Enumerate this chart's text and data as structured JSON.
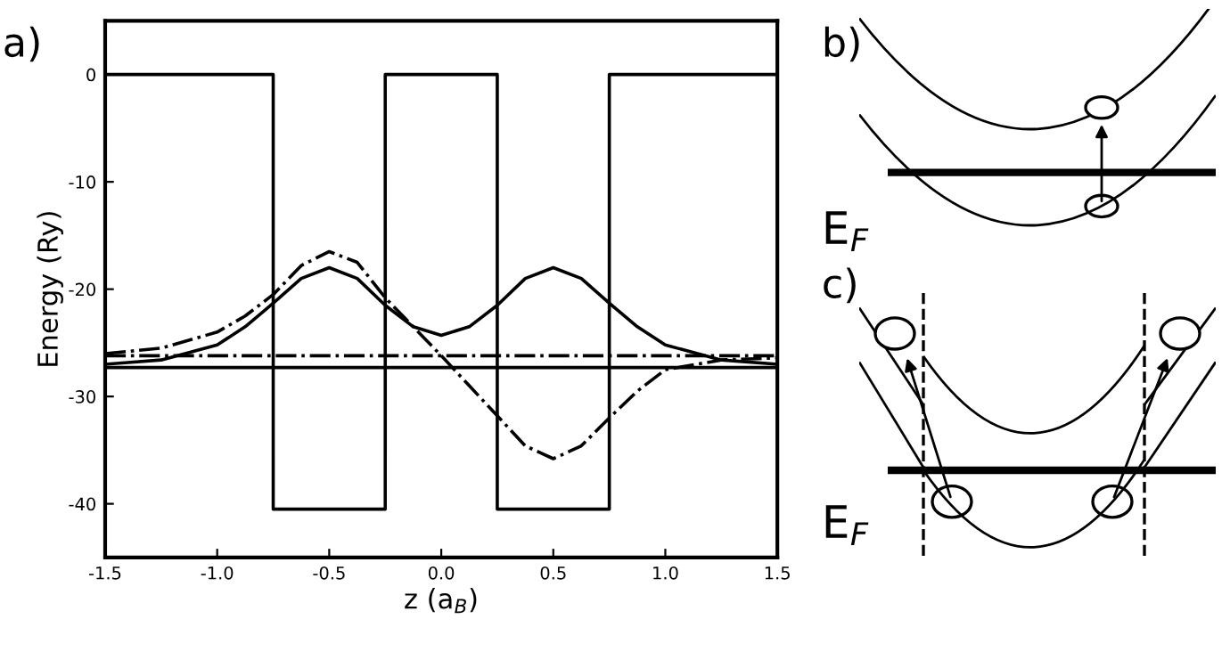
{
  "chart_data": {
    "type": "line",
    "xlabel": "z (a$_{B}$)",
    "ylabel": "Energy (Ry)",
    "xlim": [
      -1.5,
      1.5
    ],
    "ylim": [
      -45,
      5
    ],
    "xticks": [
      {
        "value": -1.5,
        "label": "-1.5"
      },
      {
        "value": -1.0,
        "label": "-1.0"
      },
      {
        "value": -0.5,
        "label": "-0.5"
      },
      {
        "value": 0.0,
        "label": "0.0"
      },
      {
        "value": 0.5,
        "label": "0.5"
      },
      {
        "value": 1.0,
        "label": "1.0"
      },
      {
        "value": 1.5,
        "label": "1.5"
      }
    ],
    "yticks": [
      -40,
      -30,
      -20,
      -10,
      0
    ],
    "grid": false,
    "series": [
      {
        "color": "#000000",
        "line_style": "solid",
        "x": [
          -1.5,
          -0.75,
          -0.75,
          -0.25,
          -0.25,
          0.25,
          0.25,
          0.75,
          0.75,
          1.5
        ],
        "values": [
          0,
          0,
          -40.5,
          -40.5,
          0,
          0,
          -40.5,
          -40.5,
          0,
          0
        ]
      },
      {
        "color": "#000000",
        "line_style": "solid",
        "x": [
          -1.5,
          -1.25,
          -1.0,
          -0.875,
          -0.75,
          -0.625,
          -0.5,
          -0.375,
          -0.25,
          -0.125,
          0,
          0.125,
          0.25,
          0.375,
          0.5,
          0.625,
          0.75,
          0.875,
          1.0,
          1.25,
          1.5
        ],
        "values": [
          -27,
          -26.6,
          -25.2,
          -23.5,
          -21.3,
          -19,
          -18,
          -19,
          -21.5,
          -23.5,
          -24.3,
          -23.5,
          -21.5,
          -19,
          -18,
          -19,
          -21.3,
          -23.5,
          -25.2,
          -26.6,
          -27
        ]
      },
      {
        "color": "#000000",
        "line_style": "dashdot",
        "x": [
          -1.5,
          -1.25,
          -1.0,
          -0.875,
          -0.75,
          -0.625,
          -0.5,
          -0.375,
          -0.25,
          -0.125,
          0,
          0.125,
          0.25,
          0.375,
          0.5,
          0.625,
          0.75,
          0.875,
          1.0,
          1.25,
          1.5
        ],
        "values": [
          -26,
          -25.5,
          -24,
          -22.5,
          -20.5,
          -17.8,
          -16.5,
          -17.5,
          -20.8,
          -23.5,
          -26.2,
          -29,
          -31.8,
          -34.6,
          -35.8,
          -34.6,
          -32,
          -29.5,
          -27.5,
          -26.6,
          -26.4
        ]
      }
    ],
    "ref_lines": [
      {
        "axis": "y",
        "value": -27.3,
        "color": "#000000",
        "line_style": "solid"
      },
      {
        "axis": "y",
        "value": -26.2,
        "color": "#000000",
        "line_style": "dashdot"
      }
    ],
    "annotations": [
      "a)",
      "b)",
      "E$_{F}$",
      "c)",
      "E$_{F}$"
    ]
  }
}
